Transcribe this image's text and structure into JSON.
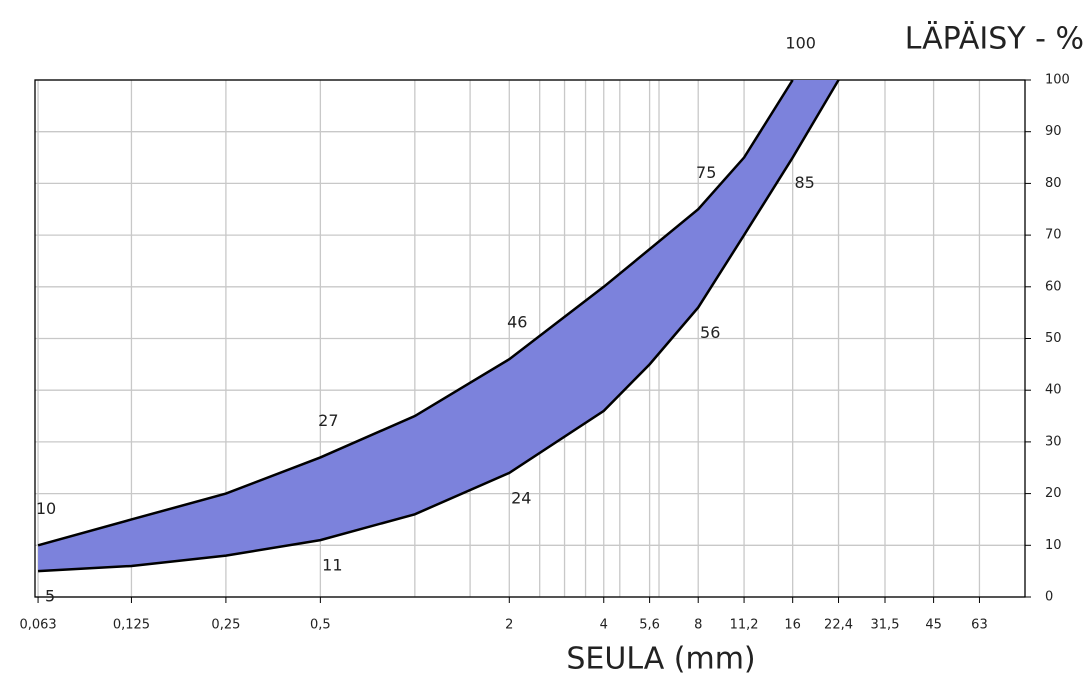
{
  "chart_data": {
    "type": "band",
    "xlabel": "SEULA (mm)",
    "ylabel": "LÄPÄISY - %",
    "xscale": "log",
    "xlim": [
      0.0616,
      88
    ],
    "ylim": [
      0,
      100
    ],
    "xticks": [
      {
        "value": 0.063,
        "label": "0,063"
      },
      {
        "value": 0.125,
        "label": "0,125"
      },
      {
        "value": 0.25,
        "label": "0,25"
      },
      {
        "value": 0.5,
        "label": "0,5"
      },
      2,
      4,
      {
        "value": 5.6,
        "label": "5,6"
      },
      8,
      {
        "value": 11.2,
        "label": "11,2"
      },
      16,
      {
        "value": 22.4,
        "label": "22,4"
      },
      {
        "value": 31.5,
        "label": "31,5"
      },
      45,
      63
    ],
    "xgrid_extra": [
      1,
      1.5,
      2.5,
      3,
      3.5,
      4.5,
      6
    ],
    "yticks": [
      0,
      10,
      20,
      30,
      40,
      50,
      60,
      70,
      80,
      90,
      100
    ],
    "grid": true,
    "fill_color": "#7c82dc",
    "line_color": "#000000",
    "series": [
      {
        "x": [
          0.063,
          0.125,
          0.25,
          0.5,
          1,
          2,
          4,
          8,
          11.2,
          16
        ],
        "values": [
          10,
          15,
          20,
          27,
          35,
          46,
          60,
          75,
          85,
          100
        ],
        "labeled": [
          0,
          3,
          5,
          7,
          9
        ]
      },
      {
        "x": [
          0.063,
          0.125,
          0.25,
          0.5,
          1,
          2,
          4,
          5.6,
          8,
          11.2,
          16,
          22.4
        ],
        "values": [
          5,
          6,
          8,
          11,
          16,
          24,
          36,
          45,
          56,
          70,
          85,
          100
        ],
        "labeled": [
          0,
          3,
          5,
          8,
          10
        ]
      }
    ]
  }
}
